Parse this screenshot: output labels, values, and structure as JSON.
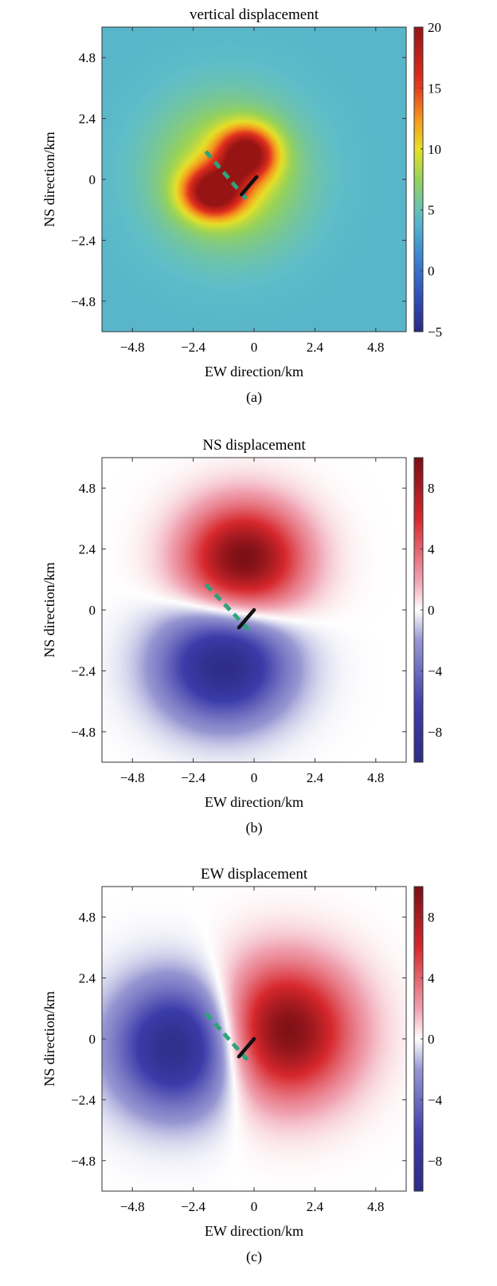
{
  "chart_data": [
    {
      "id": "a",
      "type": "heatmap",
      "title": "vertical displacement",
      "xlabel": "EW direction/km",
      "ylabel": "NS direction/km",
      "xlim": [
        -6,
        6
      ],
      "ylim": [
        -6,
        6
      ],
      "xticks": [
        -4.8,
        -2.4,
        0,
        2.4,
        4.8
      ],
      "yticks": [
        -4.8,
        -2.4,
        0,
        2.4,
        4.8
      ],
      "xtick_labels": [
        "−4.8",
        "−2.4",
        "0",
        "2.4",
        "4.8"
      ],
      "ytick_labels": [
        "4.8",
        "2.4",
        "0",
        "−2.4",
        "−4.8"
      ],
      "colorbar": {
        "range": [
          -5,
          20
        ],
        "ticks": [
          20,
          15,
          10,
          5,
          0,
          -5
        ],
        "tick_labels": [
          "20",
          "15",
          "10",
          "5",
          "0",
          "−5"
        ],
        "colormap": "jet"
      },
      "field": {
        "background": 4,
        "lobes": [
          {
            "x": -1.6,
            "y": -0.5,
            "amp": 15,
            "sx": 1.15,
            "sy": 0.95
          },
          {
            "x": -0.3,
            "y": 1.0,
            "amp": 14.5,
            "sx": 1.1,
            "sy": 1.0
          },
          {
            "x": -1.0,
            "y": 0.2,
            "amp": 6,
            "sx": 2.8,
            "sy": 2.8
          }
        ]
      },
      "faults": {
        "dashed": {
          "from": [
            -1.9,
            1.1
          ],
          "to": [
            -0.2,
            -0.9
          ],
          "color": "#2ea37a"
        },
        "solid": {
          "from": [
            -0.5,
            -0.6
          ],
          "to": [
            0.1,
            0.1
          ],
          "color": "#111111"
        }
      },
      "panel_label": "(a)"
    },
    {
      "id": "b",
      "type": "heatmap",
      "title": "NS displacement",
      "xlabel": "EW direction/km",
      "ylabel": "NS direction/km",
      "xlim": [
        -6,
        6
      ],
      "ylim": [
        -6,
        6
      ],
      "xticks": [
        -4.8,
        -2.4,
        0,
        2.4,
        4.8
      ],
      "yticks": [
        -4.8,
        -2.4,
        0,
        2.4,
        4.8
      ],
      "xtick_labels": [
        "−4.8",
        "−2.4",
        "0",
        "2.4",
        "4.8"
      ],
      "ytick_labels": [
        "4.8",
        "2.4",
        "0",
        "−2.4",
        "−4.8"
      ],
      "colorbar": {
        "range": [
          -10,
          10
        ],
        "ticks": [
          8,
          4,
          0,
          -4,
          -8
        ],
        "tick_labels": [
          "8",
          "4",
          "0",
          "−4",
          "−8"
        ],
        "colormap": "blue-white-red"
      },
      "field": {
        "background": 0,
        "lobes": [
          {
            "x": -0.4,
            "y": 2.0,
            "amp": 10,
            "sx": 2.3,
            "sy": 2.1
          },
          {
            "x": -1.2,
            "y": -2.2,
            "amp": -10,
            "sx": 2.4,
            "sy": 2.1
          }
        ]
      },
      "faults": {
        "dashed": {
          "from": [
            -1.9,
            1.0
          ],
          "to": [
            -0.1,
            -0.9
          ],
          "color": "#2ea37a"
        },
        "solid": {
          "from": [
            -0.6,
            -0.7
          ],
          "to": [
            0.0,
            0.0
          ],
          "color": "#111111"
        }
      },
      "panel_label": "(b)"
    },
    {
      "id": "c",
      "type": "heatmap",
      "title": "EW displacement",
      "xlabel": "EW direction/km",
      "ylabel": "NS direction/km",
      "xlim": [
        -6,
        6
      ],
      "ylim": [
        -6,
        6
      ],
      "xticks": [
        -4.8,
        -2.4,
        0,
        2.4,
        4.8
      ],
      "yticks": [
        -4.8,
        -2.4,
        0,
        2.4,
        4.8
      ],
      "xtick_labels": [
        "−4.8",
        "−2.4",
        "0",
        "2.4",
        "4.8"
      ],
      "ytick_labels": [
        "4.8",
        "2.4",
        "0",
        "−2.4",
        "−4.8"
      ],
      "colorbar": {
        "range": [
          -10,
          10
        ],
        "ticks": [
          8,
          4,
          0,
          -4,
          -8
        ],
        "tick_labels": [
          "8",
          "4",
          "0",
          "−4",
          "−8"
        ],
        "colormap": "blue-white-red"
      },
      "field": {
        "background": 0,
        "lobes": [
          {
            "x": 1.2,
            "y": 0.3,
            "amp": 10,
            "sx": 2.6,
            "sy": 2.6
          },
          {
            "x": -3.0,
            "y": -0.3,
            "amp": -10,
            "sx": 2.4,
            "sy": 2.4
          }
        ]
      },
      "faults": {
        "dashed": {
          "from": [
            -1.9,
            1.0
          ],
          "to": [
            -0.2,
            -0.9
          ],
          "color": "#2ea37a"
        },
        "solid": {
          "from": [
            -0.6,
            -0.7
          ],
          "to": [
            0.0,
            0.0
          ],
          "color": "#111111"
        }
      },
      "panel_label": "(c)"
    }
  ]
}
